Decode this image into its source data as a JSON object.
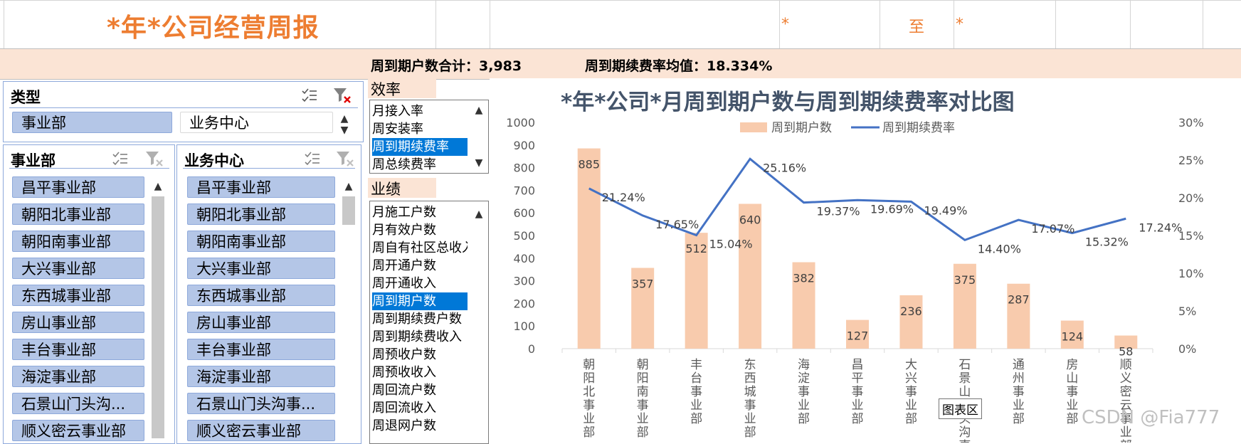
{
  "report": {
    "title": "*年*公司经营周报",
    "star1": "*",
    "to": "至",
    "star2": "*",
    "summary_count_label": "周到期户数合计：3,983",
    "summary_rate_label": "周到期续费率均值：18.334%"
  },
  "type_slicer": {
    "header": "类型",
    "items": [
      "事业部",
      "业务中心"
    ]
  },
  "dept_slicer": {
    "header": "事业部",
    "items": [
      "昌平事业部",
      "朝阳北事业部",
      "朝阳南事业部",
      "大兴事业部",
      "东西城事业部",
      "房山事业部",
      "丰台事业部",
      "海淀事业部",
      "石景山门头沟...",
      "顺义密云事业部"
    ]
  },
  "center_slicer": {
    "header": "业务中心",
    "items": [
      "昌平事业部",
      "朝阳北事业部",
      "朝阳南事业部",
      "大兴事业部",
      "东西城事业部",
      "房山事业部",
      "丰台事业部",
      "海淀事业部",
      "石景山门头沟事...",
      "顺义密云事业部"
    ]
  },
  "efficiency": {
    "label": "效率",
    "items": [
      "月接入率",
      "周安装率",
      "周到期续费率",
      "周总续费率"
    ],
    "selected": 2
  },
  "performance": {
    "label": "业绩",
    "items": [
      "月施工户数",
      "月有效户数",
      "周自有社区总收入",
      "周开通户数",
      "周开通收入",
      "周到期户数",
      "周到期续费户数",
      "周到期续费收入",
      "周预收户数",
      "周预收收入",
      "周回流户数",
      "周回流收入",
      "周退网户数"
    ],
    "selected": 5
  },
  "colors": {
    "bar": "#f8cbad",
    "line": "#4472c4",
    "accent": "#ed7d31",
    "selected": "#0078d7"
  },
  "chart_data": {
    "type": "bar",
    "title": "*年*公司*月周到期户数与周到期续费率对比图",
    "categories": [
      "朝阳北事业部",
      "朝阳南事业部",
      "丰台事业部",
      "东西城事业部",
      "海淀事业部",
      "昌平事业部",
      "大兴事业部",
      "石景山门头沟事业部",
      "通州事业部",
      "房山事业部",
      "顺义密云事业部"
    ],
    "category_labels": [
      "朝阳北事业部",
      "朝阳南事业部",
      "丰台事业部",
      "东西城事业部",
      "海淀事业部",
      "昌平事业部",
      "大兴事业部",
      "石景山门头沟事",
      "通州事业部",
      "房山事业部",
      "顺义密云事业部"
    ],
    "series": [
      {
        "name": "周到期户数",
        "type": "bar",
        "axis": "left",
        "values": [
          885,
          357,
          512,
          640,
          382,
          127,
          236,
          375,
          287,
          124,
          58
        ]
      },
      {
        "name": "周到期续费率",
        "type": "line",
        "axis": "right",
        "values": [
          21.24,
          17.65,
          15.04,
          25.16,
          19.37,
          19.69,
          19.49,
          14.4,
          17.07,
          15.32,
          17.24
        ],
        "labels": [
          "21.24%",
          "17.65%",
          "15.04%",
          "25.16%",
          "19.37%",
          "19.69%",
          "19.49%",
          "14.40%",
          "17.07%",
          "15.32%",
          "17.24%"
        ]
      }
    ],
    "yleft_ticks": [
      "1000",
      "900",
      "800",
      "700",
      "600",
      "500",
      "400",
      "300",
      "200",
      "100",
      "0"
    ],
    "yright_ticks": [
      "30%",
      "25%",
      "20%",
      "15%",
      "10%",
      "5%",
      "0%"
    ],
    "ylim_left": [
      0,
      1000
    ],
    "ylim_right": [
      0,
      30
    ],
    "legend": "top",
    "grid": false
  },
  "chart_tooltip": "图表区",
  "watermark": "CSDN @Fia777"
}
